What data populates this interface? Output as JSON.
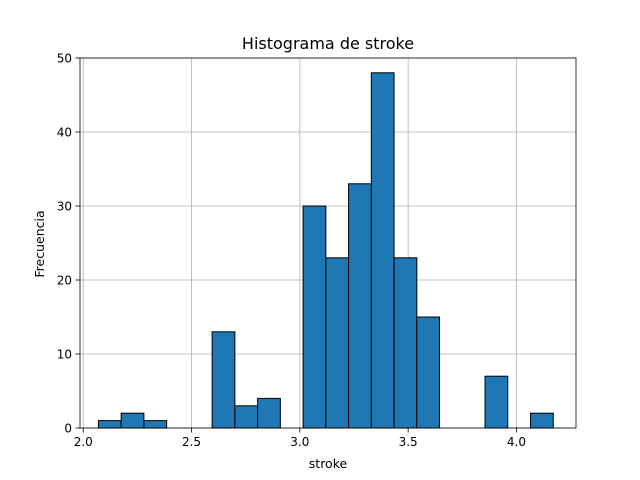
{
  "chart_data": {
    "type": "bar",
    "title": "Histograma de stroke",
    "xlabel": "stroke",
    "ylabel": "Frecuencia",
    "xlim": [
      1.985,
      4.275
    ],
    "ylim": [
      0,
      50
    ],
    "xticks": [
      2.0,
      2.5,
      3.0,
      3.5,
      4.0
    ],
    "xtick_labels": [
      "2.0",
      "2.5",
      "3.0",
      "3.5",
      "4.0"
    ],
    "yticks": [
      0,
      10,
      20,
      30,
      40,
      50
    ],
    "ytick_labels": [
      "0",
      "10",
      "20",
      "30",
      "40",
      "50"
    ],
    "grid": true,
    "bins": [
      {
        "x0": 2.07,
        "x1": 2.175,
        "value": 1
      },
      {
        "x0": 2.175,
        "x1": 2.28,
        "value": 2
      },
      {
        "x0": 2.28,
        "x1": 2.385,
        "value": 1
      },
      {
        "x0": 2.385,
        "x1": 2.49,
        "value": 0
      },
      {
        "x0": 2.49,
        "x1": 2.595,
        "value": 0
      },
      {
        "x0": 2.595,
        "x1": 2.7,
        "value": 13
      },
      {
        "x0": 2.7,
        "x1": 2.805,
        "value": 3
      },
      {
        "x0": 2.805,
        "x1": 2.91,
        "value": 4
      },
      {
        "x0": 2.91,
        "x1": 3.015,
        "value": 0
      },
      {
        "x0": 3.015,
        "x1": 3.12,
        "value": 30
      },
      {
        "x0": 3.12,
        "x1": 3.225,
        "value": 23
      },
      {
        "x0": 3.225,
        "x1": 3.33,
        "value": 33
      },
      {
        "x0": 3.33,
        "x1": 3.435,
        "value": 48
      },
      {
        "x0": 3.435,
        "x1": 3.54,
        "value": 23
      },
      {
        "x0": 3.54,
        "x1": 3.645,
        "value": 15
      },
      {
        "x0": 3.645,
        "x1": 3.75,
        "value": 0
      },
      {
        "x0": 3.75,
        "x1": 3.855,
        "value": 0
      },
      {
        "x0": 3.855,
        "x1": 3.96,
        "value": 7
      },
      {
        "x0": 3.96,
        "x1": 4.065,
        "value": 0
      },
      {
        "x0": 4.065,
        "x1": 4.17,
        "value": 2
      }
    ],
    "colors": {
      "bar_fill": "#1f77b4",
      "bar_edge": "#000000",
      "grid": "#b0b0b0",
      "axes": "#000000"
    }
  }
}
